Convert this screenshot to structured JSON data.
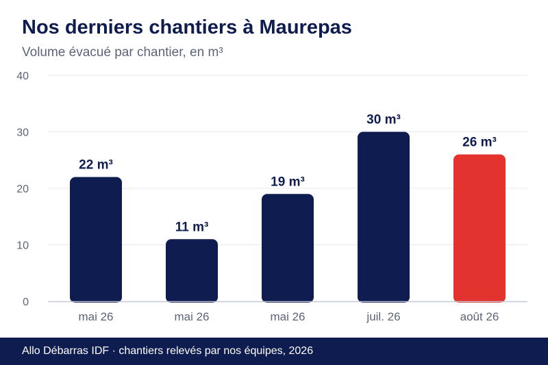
{
  "title": "Nos derniers chantiers à Maurepas",
  "subtitle": "Volume évacué par chantier, en m³",
  "footer": "Allo Débarras IDF · chantiers relevés par nos équipes, 2026",
  "colors": {
    "primary": "#0e1c4f",
    "highlight": "#e3332e",
    "grid": "#e6e8ee",
    "axis": "#c4c8d6",
    "muted_text": "#5c6478"
  },
  "chart_data": {
    "type": "bar",
    "title": "Nos derniers chantiers à Maurepas",
    "subtitle": "Volume évacué par chantier, en m³",
    "categories": [
      "mai 26",
      "mai 26",
      "mai 26",
      "juil. 26",
      "août 26"
    ],
    "values": [
      22,
      11,
      19,
      30,
      26
    ],
    "data_labels": [
      "22 m³",
      "11 m³",
      "19 m³",
      "30 m³",
      "26 m³"
    ],
    "highlight_index": 4,
    "ylim": [
      0,
      40
    ],
    "yticks": [
      0,
      10,
      20,
      30,
      40
    ],
    "xlabel": "",
    "ylabel": "",
    "grid": true,
    "legend": "none"
  }
}
